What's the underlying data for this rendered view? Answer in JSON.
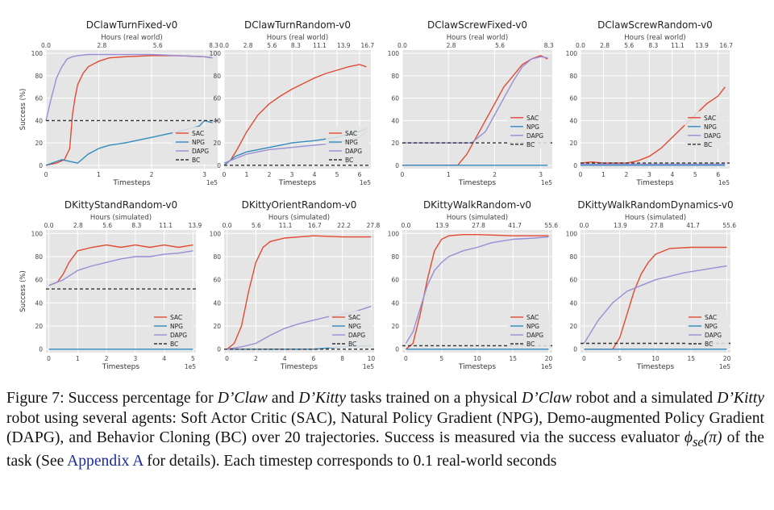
{
  "figure": {
    "caption": {
      "label": "Figure 7:",
      "t1": "Success percentage for",
      "t2": "D’Claw",
      "t3": "and",
      "t4": "D’Kitty",
      "t5": "tasks trained on a physical",
      "t6": "D’Claw",
      "t7": "robot and a simulated",
      "t8": "D’Kitty",
      "t9": "robot using several agents: Soft Actor Critic (SAC), Natural Policy Gradient (NPG), Demo-augmented Policy Gradient (DAPG), and Behavior Cloning (BC) over 20 trajectories. Success is measured via the success evaluator",
      "t10": "ϕ",
      "t11": "se",
      "t12": "(π)",
      "t13": "of the task (See",
      "link": "Appendix A",
      "t14": "for details). Each timestep corresponds to 0.1 real-world seconds"
    }
  },
  "series_style": {
    "SAC": "#e24a33",
    "NPG": "#348abd",
    "DAPG": "#988ed5",
    "BC": "#333333"
  },
  "chart_data": [
    {
      "type": "line",
      "title": "DClawTurnFixed-v0",
      "top_axis_label": "Hours (real world)",
      "top_ticks": [
        "0.0",
        "2.8",
        "5.6",
        "8.3"
      ],
      "xlabel": "Timesteps",
      "ylabel": "Success (%)",
      "x_multiplier": "1e5",
      "xlim": [
        0,
        3.25
      ],
      "xticks": [
        0,
        1,
        2,
        3
      ],
      "ylim": [
        -3,
        103
      ],
      "yticks": [
        0,
        20,
        40,
        60,
        80,
        100
      ],
      "legend": [
        "SAC",
        "NPG",
        "DAPG",
        "BC"
      ],
      "legend_position": "lower-right",
      "series": [
        {
          "name": "SAC",
          "x": [
            0,
            0.2,
            0.35,
            0.45,
            0.5,
            0.55,
            0.6,
            0.7,
            0.8,
            1.0,
            1.2,
            1.5,
            2.0,
            2.5,
            3.0,
            3.15
          ],
          "y": [
            0,
            2,
            5,
            15,
            45,
            60,
            72,
            82,
            88,
            93,
            96,
            97,
            98,
            98,
            97,
            96
          ]
        },
        {
          "name": "NPG",
          "x": [
            0,
            0.3,
            0.5,
            0.6,
            0.8,
            1.0,
            1.2,
            1.5,
            2.0,
            2.5,
            2.9,
            3.0,
            3.15
          ],
          "y": [
            0,
            5,
            3,
            2,
            10,
            15,
            18,
            20,
            25,
            30,
            35,
            40,
            38
          ]
        },
        {
          "name": "DAPG",
          "x": [
            0,
            0.05,
            0.1,
            0.2,
            0.3,
            0.4,
            0.5,
            0.6,
            0.8,
            1.0,
            1.5,
            2.0,
            2.5,
            3.0,
            3.15
          ],
          "y": [
            40,
            50,
            60,
            78,
            88,
            95,
            97,
            98,
            99,
            99,
            99,
            99,
            98,
            97,
            96
          ]
        },
        {
          "name": "BC",
          "x": [
            0,
            3.25
          ],
          "y": [
            40,
            40
          ]
        }
      ]
    },
    {
      "type": "line",
      "title": "DClawTurnRandom-v0",
      "top_axis_label": "Hours (real world)",
      "top_ticks": [
        "0.0",
        "2.8",
        "5.6",
        "8.3",
        "11.1",
        "13.9",
        "16.7"
      ],
      "xlabel": "Timesteps",
      "ylabel": "",
      "x_multiplier": "1e5",
      "xlim": [
        0,
        6.5
      ],
      "xticks": [
        0,
        1,
        2,
        3,
        4,
        5,
        6
      ],
      "ylim": [
        -3,
        103
      ],
      "yticks": [
        0,
        20,
        40,
        60,
        80,
        100
      ],
      "legend": [
        "SAC",
        "NPG",
        "DAPG",
        "BC"
      ],
      "legend_position": "lower-right",
      "series": [
        {
          "name": "SAC",
          "x": [
            0,
            0.3,
            0.6,
            1.0,
            1.5,
            2.0,
            2.5,
            3.0,
            3.5,
            4.0,
            4.5,
            5.0,
            5.5,
            6.0,
            6.3
          ],
          "y": [
            0,
            5,
            15,
            30,
            45,
            55,
            62,
            68,
            73,
            78,
            82,
            85,
            88,
            90,
            88
          ]
        },
        {
          "name": "NPG",
          "x": [
            0,
            0.5,
            1.0,
            1.5,
            2.0,
            3.0,
            4.0,
            5.0,
            5.5,
            6.0,
            6.3
          ],
          "y": [
            0,
            8,
            12,
            14,
            16,
            20,
            22,
            25,
            28,
            30,
            33
          ]
        },
        {
          "name": "DAPG",
          "x": [
            0,
            0.5,
            1.0,
            1.5,
            2.0,
            3.0,
            4.0,
            5.0,
            5.5,
            6.0,
            6.3
          ],
          "y": [
            2,
            6,
            10,
            12,
            14,
            16,
            18,
            20,
            22,
            25,
            30
          ]
        },
        {
          "name": "BC",
          "x": [
            0,
            6.5
          ],
          "y": [
            0,
            0
          ]
        }
      ]
    },
    {
      "type": "line",
      "title": "DClawScrewFixed-v0",
      "top_axis_label": "Hours (real world)",
      "top_ticks": [
        "0.0",
        "2.8",
        "5.6",
        "8.3"
      ],
      "xlabel": "Timesteps",
      "ylabel": "",
      "x_multiplier": "1e5",
      "xlim": [
        0,
        3.25
      ],
      "xticks": [
        0,
        1,
        2,
        3
      ],
      "ylim": [
        -3,
        103
      ],
      "yticks": [
        0,
        20,
        40,
        60,
        80,
        100
      ],
      "legend": [
        "SAC",
        "NPG",
        "DAPG",
        "BC"
      ],
      "legend_position": "middle-right",
      "series": [
        {
          "name": "SAC",
          "x": [
            0,
            1.2,
            1.4,
            1.6,
            1.8,
            2.0,
            2.2,
            2.4,
            2.6,
            2.8,
            3.0,
            3.15
          ],
          "y": [
            0,
            0,
            10,
            25,
            40,
            55,
            70,
            80,
            90,
            95,
            98,
            95
          ]
        },
        {
          "name": "NPG",
          "x": [
            0,
            3.15
          ],
          "y": [
            0,
            0
          ]
        },
        {
          "name": "DAPG",
          "x": [
            0,
            1.5,
            1.8,
            2.0,
            2.2,
            2.4,
            2.6,
            2.8,
            3.0,
            3.15
          ],
          "y": [
            20,
            20,
            30,
            45,
            60,
            75,
            88,
            95,
            97,
            96
          ]
        },
        {
          "name": "BC",
          "x": [
            0,
            3.25
          ],
          "y": [
            20,
            20
          ]
        }
      ]
    },
    {
      "type": "line",
      "title": "DClawScrewRandom-v0",
      "top_axis_label": "Hours (real world)",
      "top_ticks": [
        "0.0",
        "2.8",
        "5.6",
        "8.3",
        "11.1",
        "13.9",
        "16.7"
      ],
      "xlabel": "Timesteps",
      "ylabel": "",
      "x_multiplier": "1e5",
      "xlim": [
        0,
        6.5
      ],
      "xticks": [
        0,
        1,
        2,
        3,
        4,
        5,
        6
      ],
      "ylim": [
        -3,
        103
      ],
      "yticks": [
        0,
        20,
        40,
        60,
        80,
        100
      ],
      "legend": [
        "SAC",
        "NPG",
        "DAPG",
        "BC"
      ],
      "legend_position": "middle-right",
      "series": [
        {
          "name": "SAC",
          "x": [
            0,
            0.5,
            1.0,
            2.0,
            2.5,
            3.0,
            3.5,
            4.0,
            4.5,
            5.0,
            5.5,
            6.0,
            6.3
          ],
          "y": [
            2,
            3,
            2,
            2,
            4,
            8,
            15,
            25,
            35,
            45,
            55,
            62,
            70
          ]
        },
        {
          "name": "NPG",
          "x": [
            0,
            6.3
          ],
          "y": [
            0,
            0
          ]
        },
        {
          "name": "DAPG",
          "x": [
            0,
            6.3
          ],
          "y": [
            1,
            1
          ]
        },
        {
          "name": "BC",
          "x": [
            0,
            6.5
          ],
          "y": [
            2,
            2
          ]
        }
      ]
    },
    {
      "type": "line",
      "title": "DKittyStandRandom-v0",
      "top_axis_label": "Hours (simulated)",
      "top_ticks": [
        "0.0",
        "2.8",
        "5.6",
        "8.3",
        "11.1",
        "13.9"
      ],
      "xlabel": "Timesteps",
      "ylabel": "Success (%)",
      "x_multiplier": "1e5",
      "xlim": [
        -0.1,
        5.1
      ],
      "xticks": [
        0,
        1,
        2,
        3,
        4,
        5
      ],
      "ylim": [
        -3,
        103
      ],
      "yticks": [
        0,
        20,
        40,
        60,
        80,
        100
      ],
      "legend": [
        "SAC",
        "NPG",
        "DAPG",
        "BC"
      ],
      "legend_position": "lower-right",
      "series": [
        {
          "name": "SAC",
          "x": [
            0,
            0.3,
            0.5,
            0.7,
            1.0,
            1.5,
            2.0,
            2.5,
            3.0,
            3.5,
            4.0,
            4.5,
            5.0
          ],
          "y": [
            55,
            58,
            65,
            75,
            85,
            88,
            90,
            88,
            90,
            88,
            90,
            88,
            90
          ]
        },
        {
          "name": "NPG",
          "x": [
            0,
            5.0
          ],
          "y": [
            0,
            0
          ]
        },
        {
          "name": "DAPG",
          "x": [
            0,
            0.5,
            1.0,
            1.5,
            2.0,
            2.5,
            3.0,
            3.5,
            4.0,
            4.5,
            5.0
          ],
          "y": [
            55,
            60,
            68,
            72,
            75,
            78,
            80,
            80,
            82,
            83,
            85
          ]
        },
        {
          "name": "BC",
          "x": [
            -0.1,
            5.1
          ],
          "y": [
            52,
            52
          ]
        }
      ]
    },
    {
      "type": "line",
      "title": "DKittyOrientRandom-v0",
      "top_axis_label": "Hours (simulated)",
      "top_ticks": [
        "0.0",
        "5.6",
        "11.1",
        "16.7",
        "22.2",
        "27.8"
      ],
      "xlabel": "Timesteps",
      "ylabel": "",
      "x_multiplier": "1e5",
      "xlim": [
        -0.2,
        10.2
      ],
      "xticks": [
        0,
        2,
        4,
        6,
        8,
        10
      ],
      "ylim": [
        -3,
        103
      ],
      "yticks": [
        0,
        20,
        40,
        60,
        80,
        100
      ],
      "legend": [
        "SAC",
        "NPG",
        "DAPG",
        "BC"
      ],
      "legend_position": "lower-right",
      "series": [
        {
          "name": "SAC",
          "x": [
            0,
            0.5,
            1.0,
            1.5,
            2.0,
            2.5,
            3.0,
            4.0,
            5.0,
            6.0,
            8.0,
            10.0
          ],
          "y": [
            0,
            5,
            20,
            50,
            75,
            88,
            93,
            96,
            97,
            98,
            97,
            97
          ]
        },
        {
          "name": "NPG",
          "x": [
            0,
            6.0,
            7.0,
            8.0,
            10.0
          ],
          "y": [
            0,
            0,
            1,
            2,
            3
          ]
        },
        {
          "name": "DAPG",
          "x": [
            0,
            1.0,
            2.0,
            3.0,
            4.0,
            5.0,
            6.0,
            7.0,
            8.0,
            9.0,
            10.0
          ],
          "y": [
            0,
            2,
            5,
            12,
            18,
            22,
            25,
            28,
            30,
            33,
            37
          ]
        },
        {
          "name": "BC",
          "x": [
            -0.2,
            10.2
          ],
          "y": [
            0,
            0
          ]
        }
      ]
    },
    {
      "type": "line",
      "title": "DKittyWalkRandom-v0",
      "top_axis_label": "Hours (simulated)",
      "top_ticks": [
        "0.0",
        "13.9",
        "27.8",
        "41.7",
        "55.6"
      ],
      "xlabel": "Timesteps",
      "ylabel": "",
      "x_multiplier": "1e5",
      "xlim": [
        -0.5,
        20.5
      ],
      "xticks": [
        0,
        5,
        10,
        15,
        20
      ],
      "ylim": [
        -3,
        103
      ],
      "yticks": [
        0,
        20,
        40,
        60,
        80,
        100
      ],
      "legend": [
        "SAC",
        "NPG",
        "DAPG",
        "BC"
      ],
      "legend_position": "lower-right",
      "series": [
        {
          "name": "SAC",
          "x": [
            0,
            1,
            2,
            3,
            4,
            5,
            6,
            8,
            10,
            15,
            20
          ],
          "y": [
            0,
            5,
            30,
            60,
            85,
            95,
            98,
            99,
            99,
            98,
            98
          ]
        },
        {
          "name": "NPG",
          "x": [
            0,
            20
          ],
          "y": [
            0,
            0
          ]
        },
        {
          "name": "DAPG",
          "x": [
            0,
            1,
            2,
            3,
            4,
            5,
            6,
            8,
            10,
            12,
            15,
            18,
            20
          ],
          "y": [
            5,
            15,
            35,
            55,
            68,
            75,
            80,
            85,
            88,
            92,
            95,
            96,
            97
          ]
        },
        {
          "name": "BC",
          "x": [
            -0.5,
            20.5
          ],
          "y": [
            3,
            3
          ]
        }
      ]
    },
    {
      "type": "line",
      "title": "DKittyWalkRandomDynamics-v0",
      "top_axis_label": "Hours (simulated)",
      "top_ticks": [
        "0.0",
        "13.9",
        "27.8",
        "41.7",
        "55.6"
      ],
      "xlabel": "Timesteps",
      "ylabel": "",
      "x_multiplier": "1e5",
      "xlim": [
        -0.5,
        20.5
      ],
      "xticks": [
        0,
        5,
        10,
        15,
        20
      ],
      "ylim": [
        -3,
        103
      ],
      "yticks": [
        0,
        20,
        40,
        60,
        80,
        100
      ],
      "legend": [
        "SAC",
        "NPG",
        "DAPG",
        "BC"
      ],
      "legend_position": "lower-right",
      "series": [
        {
          "name": "SAC",
          "x": [
            0,
            4,
            5,
            6,
            7,
            8,
            9,
            10,
            12,
            15,
            18,
            20
          ],
          "y": [
            0,
            0,
            10,
            30,
            50,
            65,
            75,
            82,
            87,
            88,
            88,
            88
          ]
        },
        {
          "name": "NPG",
          "x": [
            0,
            20
          ],
          "y": [
            0,
            0
          ]
        },
        {
          "name": "DAPG",
          "x": [
            0,
            2,
            4,
            6,
            8,
            10,
            12,
            14,
            16,
            18,
            20
          ],
          "y": [
            5,
            25,
            40,
            50,
            55,
            60,
            63,
            66,
            68,
            70,
            72
          ]
        },
        {
          "name": "BC",
          "x": [
            -0.5,
            20.5
          ],
          "y": [
            5,
            5
          ]
        }
      ]
    }
  ]
}
